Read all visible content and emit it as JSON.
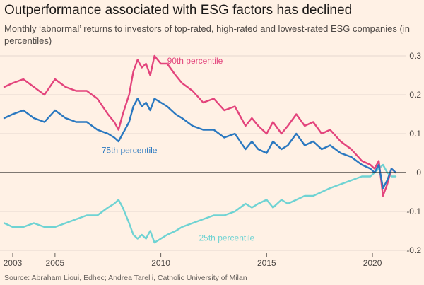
{
  "header": {
    "title": "Outperformance associated with ESG factors has declined",
    "subtitle": "Monthly ‘abnormal’ returns to investors of top-rated, high-rated and lowest-rated ESG companies (in percentiles)"
  },
  "footer": {
    "source": "Source: Abraham Lioui, Edhec; Andrea Tarelli, Catholic University of Milan"
  },
  "colors": {
    "background": "#fff1e5",
    "grid": "#e4d8ce",
    "zero_line": "#33302e",
    "p90": "#e3447c",
    "p75": "#2a78c0",
    "p25": "#6fd3d3"
  },
  "chart_data": {
    "type": "line",
    "title": "Outperformance associated with ESG factors has declined",
    "xlabel": "",
    "ylabel": "",
    "xlim": [
      2002.6,
      2021.3
    ],
    "ylim": [
      -0.2,
      0.3
    ],
    "x_ticks": [
      2003,
      2005,
      2010,
      2015,
      2020
    ],
    "x_tick_labels": [
      "2003",
      "2005",
      "2010",
      "2015",
      "2020"
    ],
    "y_ticks": [
      0.3,
      0.2,
      0.1,
      0,
      -0.1,
      -0.2
    ],
    "y_tick_labels": [
      "0.3",
      "0.2",
      "0.1",
      "0",
      "-0.1",
      "-0.2"
    ],
    "grid": true,
    "legend": "direct labels on lines",
    "series": [
      {
        "name": "90th percentile",
        "color_key": "p90",
        "x": [
          2002.6,
          2003.0,
          2003.5,
          2004.0,
          2004.5,
          2005.0,
          2005.5,
          2006.0,
          2006.5,
          2007.0,
          2007.5,
          2007.8,
          2008.0,
          2008.2,
          2008.5,
          2008.7,
          2008.9,
          2009.1,
          2009.3,
          2009.5,
          2009.7,
          2010.0,
          2010.3,
          2010.7,
          2011.0,
          2011.5,
          2012.0,
          2012.5,
          2013.0,
          2013.5,
          2014.0,
          2014.3,
          2014.6,
          2015.0,
          2015.3,
          2015.7,
          2016.0,
          2016.4,
          2016.8,
          2017.2,
          2017.6,
          2018.0,
          2018.5,
          2019.0,
          2019.5,
          2019.9,
          2020.1,
          2020.3,
          2020.5,
          2020.7,
          2020.9,
          2021.1
        ],
        "values": [
          0.22,
          0.23,
          0.24,
          0.22,
          0.2,
          0.24,
          0.22,
          0.21,
          0.21,
          0.19,
          0.15,
          0.13,
          0.11,
          0.15,
          0.2,
          0.26,
          0.29,
          0.27,
          0.28,
          0.25,
          0.3,
          0.28,
          0.28,
          0.25,
          0.23,
          0.21,
          0.18,
          0.19,
          0.16,
          0.17,
          0.12,
          0.14,
          0.12,
          0.1,
          0.13,
          0.1,
          0.12,
          0.15,
          0.12,
          0.13,
          0.1,
          0.11,
          0.08,
          0.06,
          0.03,
          0.02,
          0.01,
          0.03,
          -0.06,
          -0.03,
          0.01,
          0.0
        ]
      },
      {
        "name": "75th percentile",
        "color_key": "p75",
        "x": [
          2002.6,
          2003.0,
          2003.5,
          2004.0,
          2004.5,
          2005.0,
          2005.5,
          2006.0,
          2006.5,
          2007.0,
          2007.5,
          2007.8,
          2008.0,
          2008.2,
          2008.5,
          2008.7,
          2008.9,
          2009.1,
          2009.3,
          2009.5,
          2009.7,
          2010.0,
          2010.3,
          2010.7,
          2011.0,
          2011.5,
          2012.0,
          2012.5,
          2013.0,
          2013.5,
          2014.0,
          2014.3,
          2014.6,
          2015.0,
          2015.3,
          2015.7,
          2016.0,
          2016.4,
          2016.8,
          2017.2,
          2017.6,
          2018.0,
          2018.5,
          2019.0,
          2019.5,
          2019.9,
          2020.1,
          2020.3,
          2020.5,
          2020.7,
          2020.9,
          2021.1
        ],
        "values": [
          0.14,
          0.15,
          0.16,
          0.14,
          0.13,
          0.16,
          0.14,
          0.13,
          0.13,
          0.11,
          0.1,
          0.09,
          0.08,
          0.1,
          0.13,
          0.17,
          0.19,
          0.17,
          0.18,
          0.16,
          0.19,
          0.18,
          0.17,
          0.15,
          0.14,
          0.12,
          0.11,
          0.11,
          0.09,
          0.1,
          0.06,
          0.08,
          0.06,
          0.05,
          0.08,
          0.06,
          0.07,
          0.1,
          0.07,
          0.08,
          0.06,
          0.07,
          0.05,
          0.04,
          0.02,
          0.01,
          0.0,
          0.02,
          -0.04,
          -0.02,
          0.01,
          0.0
        ]
      },
      {
        "name": "25th percentile",
        "color_key": "p25",
        "x": [
          2002.6,
          2003.0,
          2003.5,
          2004.0,
          2004.5,
          2005.0,
          2005.5,
          2006.0,
          2006.5,
          2007.0,
          2007.5,
          2007.8,
          2008.0,
          2008.2,
          2008.5,
          2008.7,
          2008.9,
          2009.1,
          2009.3,
          2009.5,
          2009.7,
          2010.0,
          2010.3,
          2010.7,
          2011.0,
          2011.5,
          2012.0,
          2012.5,
          2013.0,
          2013.5,
          2014.0,
          2014.3,
          2014.6,
          2015.0,
          2015.3,
          2015.7,
          2016.0,
          2016.4,
          2016.8,
          2017.2,
          2017.6,
          2018.0,
          2018.5,
          2019.0,
          2019.5,
          2019.9,
          2020.1,
          2020.3,
          2020.5,
          2020.7,
          2020.9,
          2021.1
        ],
        "values": [
          -0.13,
          -0.14,
          -0.14,
          -0.13,
          -0.14,
          -0.14,
          -0.13,
          -0.12,
          -0.11,
          -0.11,
          -0.09,
          -0.08,
          -0.07,
          -0.09,
          -0.13,
          -0.16,
          -0.17,
          -0.16,
          -0.17,
          -0.15,
          -0.18,
          -0.17,
          -0.16,
          -0.15,
          -0.14,
          -0.13,
          -0.12,
          -0.11,
          -0.11,
          -0.1,
          -0.08,
          -0.09,
          -0.08,
          -0.07,
          -0.09,
          -0.07,
          -0.08,
          -0.07,
          -0.06,
          -0.06,
          -0.05,
          -0.04,
          -0.03,
          -0.02,
          -0.01,
          -0.01,
          0.0,
          0.01,
          0.02,
          0.0,
          -0.01,
          -0.01
        ]
      }
    ],
    "annotations": [
      {
        "text": "90th percentile",
        "series": "90th percentile",
        "x": 2010.3,
        "y": 0.28
      },
      {
        "text": "75th percentile",
        "series": "75th percentile",
        "x": 2007.2,
        "y": 0.05
      },
      {
        "text": "25th percentile",
        "series": "25th percentile",
        "x": 2011.8,
        "y": -0.175
      }
    ]
  }
}
